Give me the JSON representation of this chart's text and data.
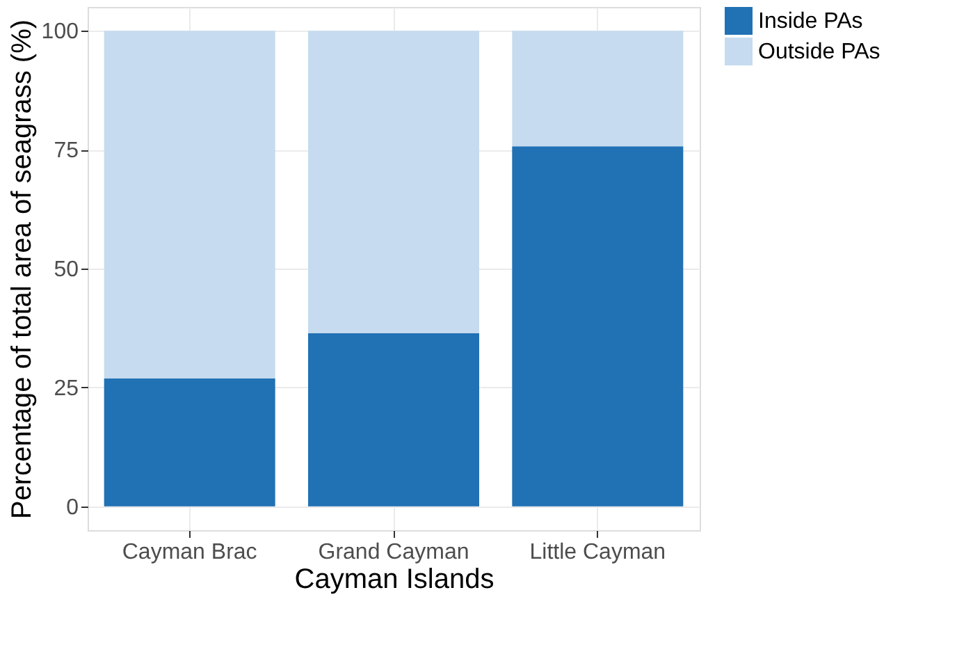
{
  "chart_data": {
    "type": "bar",
    "stacked": true,
    "xlabel": "Cayman Islands",
    "ylabel": "Percentage of total area of seagrass (%)",
    "categories": [
      "Cayman Brac",
      "Grand Cayman",
      "Little Cayman"
    ],
    "series": [
      {
        "name": "Inside PAs",
        "color": "#2171b5",
        "values": [
          26.9,
          36.4,
          75.7
        ]
      },
      {
        "name": "Outside PAs",
        "color": "#c6dbef",
        "values": [
          73.1,
          63.6,
          24.3
        ]
      }
    ],
    "ylim": [
      -5,
      105
    ],
    "yticks": [
      0,
      25,
      50,
      75,
      100
    ],
    "grid": true,
    "legend": "right"
  }
}
